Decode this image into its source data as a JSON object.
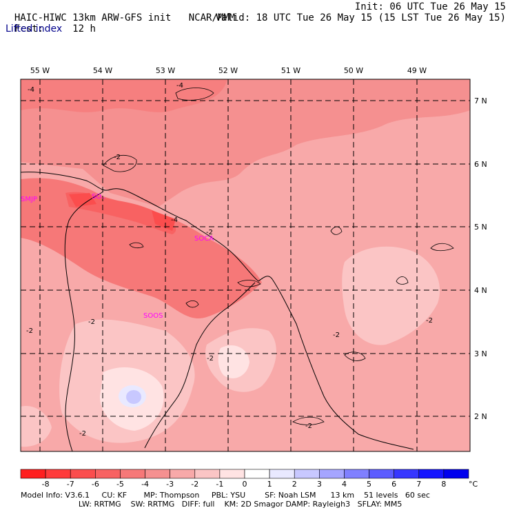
{
  "header": {
    "model_title": "HAIC-HIWC 13km ARW-GFS init",
    "org": "NCAR/MMM",
    "init_time": "Init: 06 UTC Tue 26 May 15",
    "forecast_label": "Fcst:",
    "forecast_hours": "12 h",
    "valid_time": "Valid: 18 UTC Tue 26 May 15 (15 LST Tue 26 May 15)",
    "field_name": "Lifted index"
  },
  "map": {
    "lon_labels": [
      "55 W",
      "54 W",
      "53 W",
      "52 W",
      "51 W",
      "50 W",
      "49 W"
    ],
    "lat_labels": [
      "7 N",
      "6 N",
      "5 N",
      "4 N",
      "3 N",
      "2 N"
    ],
    "station_labels": [
      "SMJP",
      "SOCA",
      "SOOS",
      "SO.."
    ],
    "contour_labels": [
      "-4",
      "-4",
      "-2",
      "-4",
      "-2",
      "-2",
      "-2",
      "-2",
      "-2",
      "-2",
      "-2",
      "-2"
    ]
  },
  "colorbar": {
    "tick_labels": [
      "-8",
      "-7",
      "-6",
      "-5",
      "-4",
      "-3",
      "-2",
      "-1",
      "0",
      "1",
      "2",
      "3",
      "4",
      "5",
      "6",
      "7",
      "8"
    ],
    "unit": "°C",
    "colors": [
      "#ff1f1f",
      "#ff3b3b",
      "#fb4d4d",
      "#f86262",
      "#f67878",
      "#f59090",
      "#f8a9a9",
      "#fbc5c5",
      "#ffe3e3",
      "#ffffff",
      "#e9e9ff",
      "#c8c8ff",
      "#a5a5ff",
      "#8080ff",
      "#5c5cff",
      "#3737ff",
      "#1616ff",
      "#0000ee"
    ]
  },
  "footer": {
    "line1": "Model Info: V3.6.1     CU: KF       MP: Thompson     PBL: YSU        SF: Noah LSM      13 km    51 levels   60 sec",
    "line2": "                        LW: RRTMG    SW: RRTMG   DIFF: full    KM: 2D Smagor DAMP: Rayleigh3   SFLAY: MM5"
  }
}
